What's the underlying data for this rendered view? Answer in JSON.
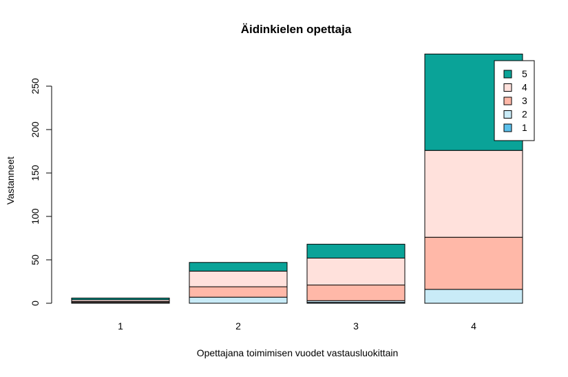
{
  "chart_data": {
    "type": "bar",
    "stacked": true,
    "title": "Äidinkielen opettaja",
    "xlabel": "Opettajana toimimisen vuodet vastausluokittain",
    "ylabel": "Vastanneet",
    "categories": [
      "1",
      "2",
      "3",
      "4"
    ],
    "ylim": [
      0,
      290
    ],
    "yticks": [
      0,
      50,
      100,
      150,
      200,
      250
    ],
    "legend_position": "top-right",
    "series": [
      {
        "name": "1",
        "color": "#5BC0EB",
        "values": [
          0,
          0,
          1,
          0
        ]
      },
      {
        "name": "2",
        "color": "#C9EBF7",
        "values": [
          1,
          7,
          2,
          16
        ]
      },
      {
        "name": "3",
        "color": "#FFB8A8",
        "values": [
          1,
          12,
          18,
          60
        ]
      },
      {
        "name": "4",
        "color": "#FFE1DC",
        "values": [
          2,
          18,
          31,
          100
        ]
      },
      {
        "name": "5",
        "color": "#0AA398",
        "values": [
          2,
          10,
          16,
          111
        ]
      }
    ]
  }
}
